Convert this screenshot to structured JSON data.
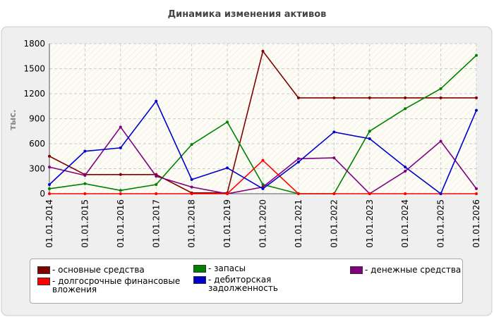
{
  "chart_data": {
    "type": "line",
    "title": "Динамика изменения активов",
    "y_label": "тыс.",
    "categories": [
      "01.01.2014",
      "01.01.2015",
      "01.01.2016",
      "01.01.2017",
      "01.01.2018",
      "01.01.2019",
      "01.01.2020",
      "01.01.2021",
      "01.01.2022",
      "01.01.2023",
      "01.01.2024",
      "01.01.2025",
      "01.01.2026"
    ],
    "series": [
      {
        "name": "- основные средства",
        "color": "#800000",
        "values": [
          450,
          230,
          230,
          230,
          10,
          10,
          1710,
          1150,
          1150,
          1150,
          1150,
          1150,
          1150
        ]
      },
      {
        "name": "- запасы",
        "color": "#008000",
        "values": [
          60,
          120,
          40,
          110,
          590,
          860,
          110,
          0,
          0,
          750,
          1020,
          1260,
          1660
        ]
      },
      {
        "name": "- денежные средства",
        "color": "#800080",
        "values": [
          320,
          220,
          800,
          210,
          80,
          0,
          80,
          420,
          430,
          0,
          270,
          630,
          60
        ]
      },
      {
        "name": "- долгосрочные финансовые вложения",
        "color": "#ff0000",
        "values": [
          0,
          0,
          0,
          0,
          0,
          0,
          400,
          0,
          0,
          0,
          0,
          0,
          0
        ]
      },
      {
        "name": "- дебиторская задолженность",
        "color": "#0000cc",
        "values": [
          110,
          510,
          550,
          1110,
          170,
          310,
          60,
          380,
          740,
          660,
          320,
          0,
          1000
        ]
      }
    ],
    "ylim": [
      0,
      1800
    ],
    "yticks": [
      0,
      300,
      600,
      900,
      1200,
      1500,
      1800
    ],
    "grid": true
  }
}
